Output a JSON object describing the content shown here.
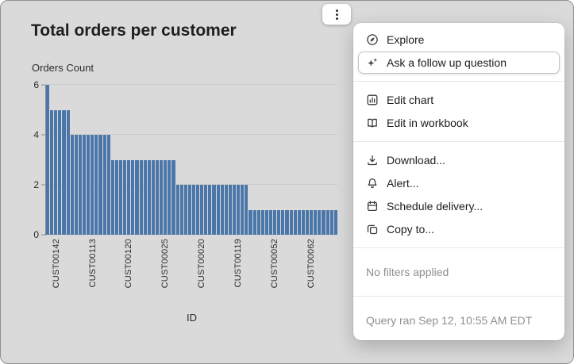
{
  "chart_data": {
    "type": "bar",
    "title": "Total orders per customer",
    "ylabel": "Orders Count",
    "xlabel": "ID",
    "ylim": [
      0,
      6
    ],
    "yticks": [
      0,
      2,
      4,
      6
    ],
    "grid": true,
    "legend": "none",
    "bar_color": "#4a76a9",
    "values": [
      6,
      5,
      5,
      5,
      5,
      5,
      4,
      4,
      4,
      4,
      4,
      4,
      4,
      4,
      4,
      4,
      3,
      3,
      3,
      3,
      3,
      3,
      3,
      3,
      3,
      3,
      3,
      3,
      3,
      3,
      3,
      3,
      2,
      2,
      2,
      2,
      2,
      2,
      2,
      2,
      2,
      2,
      2,
      2,
      2,
      2,
      2,
      2,
      2,
      2,
      1,
      1,
      1,
      1,
      1,
      1,
      1,
      1,
      1,
      1,
      1,
      1,
      1,
      1,
      1,
      1,
      1,
      1,
      1,
      1,
      1,
      1
    ],
    "tick_labels": [
      "CUST00142",
      "CUST00113",
      "CUST00120",
      "CUST00025",
      "CUST00020",
      "CUST00119",
      "CUST00052",
      "CUST00062"
    ],
    "tick_indices": [
      2,
      11,
      20,
      29,
      38,
      47,
      56,
      65
    ]
  },
  "kebab_button": {
    "icon": "kebab-icon"
  },
  "menu": {
    "items": [
      {
        "label": "Explore",
        "icon": "compass-icon",
        "highlighted": false
      },
      {
        "label": "Ask a follow up question",
        "icon": "sparkles-icon",
        "highlighted": true
      },
      {
        "label": "Edit chart",
        "icon": "bar-chart-icon",
        "highlighted": false
      },
      {
        "label": "Edit in workbook",
        "icon": "workbook-icon",
        "highlighted": false
      },
      {
        "label": "Download...",
        "icon": "download-icon",
        "highlighted": false
      },
      {
        "label": "Alert...",
        "icon": "bell-icon",
        "highlighted": false
      },
      {
        "label": "Schedule delivery...",
        "icon": "calendar-icon",
        "highlighted": false
      },
      {
        "label": "Copy to...",
        "icon": "copy-icon",
        "highlighted": false
      }
    ],
    "status_items": [
      {
        "label": "No filters applied"
      },
      {
        "label": "Query ran Sep 12, 10:55 AM EDT"
      }
    ]
  },
  "colors": {
    "window_background": "#dadada",
    "menu_background": "#ffffff",
    "bar": "#4a76a9",
    "text": "#1c1c1c",
    "muted_text": "#8f8f8f"
  }
}
